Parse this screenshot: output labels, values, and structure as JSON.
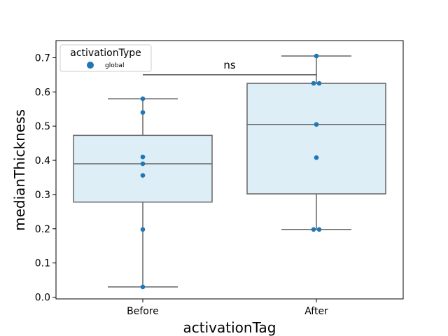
{
  "chart_data": {
    "type": "box",
    "xlabel": "activationTag",
    "ylabel": "medianThickness",
    "categories": [
      "Before",
      "After"
    ],
    "ylim": [
      -0.005,
      0.75
    ],
    "yticks": [
      0.0,
      0.1,
      0.2,
      0.3,
      0.4,
      0.5,
      0.6,
      0.7
    ],
    "ytick_labels": [
      "0.0",
      "0.1",
      "0.2",
      "0.3",
      "0.4",
      "0.5",
      "0.6",
      "0.7"
    ],
    "boxes": [
      {
        "category": "Before",
        "whisker_low": 0.03,
        "q1": 0.278,
        "median": 0.39,
        "q3": 0.473,
        "whisker_high": 0.58
      },
      {
        "category": "After",
        "whisker_low": 0.198,
        "q1": 0.302,
        "median": 0.505,
        "q3": 0.625,
        "whisker_high": 0.705
      }
    ],
    "points": [
      {
        "category": "Before",
        "values": [
          0.03,
          0.198,
          0.356,
          0.39,
          0.41,
          0.54,
          0.58
        ]
      },
      {
        "category": "After",
        "values": [
          0.198,
          0.198,
          0.408,
          0.505,
          0.625,
          0.625,
          0.705
        ]
      }
    ],
    "annotation": {
      "text": "ns",
      "between": [
        "Before",
        "After"
      ],
      "y": 0.65
    },
    "legend": {
      "title": "activationType",
      "entries": [
        {
          "label": "global"
        }
      ],
      "placement": "upper-left"
    },
    "colors": {
      "box_fill": "#ddeef6",
      "box_edge": "#666666",
      "point": "#1f77b4",
      "axes": "#000000"
    },
    "grid": false
  }
}
